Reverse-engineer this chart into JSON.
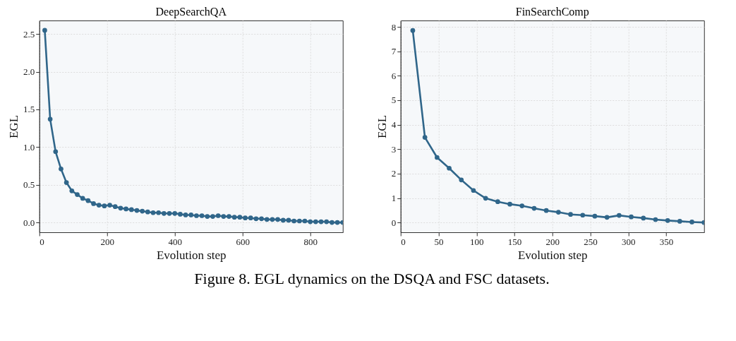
{
  "chart_data": [
    {
      "type": "line",
      "title": "DeepSearchQA",
      "xlabel": "Evolution step",
      "ylabel": "EGL",
      "x": [
        16,
        32,
        48,
        64,
        80,
        96,
        112,
        128,
        144,
        160,
        176,
        192,
        208,
        224,
        240,
        256,
        272,
        288,
        304,
        320,
        336,
        352,
        368,
        384,
        400,
        416,
        432,
        448,
        464,
        480,
        496,
        512,
        528,
        544,
        560,
        576,
        592,
        608,
        624,
        640,
        656,
        672,
        688,
        704,
        720,
        736,
        752,
        768,
        784,
        800,
        816,
        832,
        848,
        864,
        880,
        896
      ],
      "series": [
        {
          "color": "#30668a",
          "values": [
            2.55,
            1.37,
            0.94,
            0.71,
            0.53,
            0.42,
            0.37,
            0.32,
            0.29,
            0.25,
            0.23,
            0.22,
            0.23,
            0.21,
            0.19,
            0.18,
            0.17,
            0.16,
            0.15,
            0.14,
            0.13,
            0.13,
            0.12,
            0.12,
            0.12,
            0.11,
            0.1,
            0.1,
            0.09,
            0.09,
            0.08,
            0.08,
            0.09,
            0.08,
            0.08,
            0.07,
            0.07,
            0.06,
            0.06,
            0.05,
            0.05,
            0.04,
            0.04,
            0.04,
            0.03,
            0.03,
            0.02,
            0.02,
            0.02,
            0.01,
            0.01,
            0.01,
            0.01,
            0.0,
            0.0,
            0.0
          ]
        }
      ],
      "xlim": [
        0,
        896
      ],
      "xticks": [
        0,
        200,
        400,
        600,
        800
      ],
      "ylim": [
        -0.13,
        2.68
      ],
      "yticks": [
        {
          "value": 0,
          "label": "0.0"
        },
        0.5,
        {
          "value": 1,
          "label": "1.0"
        },
        1.5,
        {
          "value": 2,
          "label": "2.0"
        },
        2.5
      ],
      "grid": true,
      "marker": "circle",
      "line_style": "solid",
      "annotations": [
        "Figure 8. EGL dynamics on the DSQA and FSC datasets."
      ]
    },
    {
      "type": "line",
      "title": "FinSearchComp",
      "xlabel": "Evolution step",
      "ylabel": "EGL",
      "x": [
        16,
        32,
        48,
        64,
        80,
        96,
        112,
        128,
        144,
        160,
        176,
        192,
        208,
        224,
        240,
        256,
        272,
        288,
        304,
        320,
        336,
        352,
        368,
        384,
        400
      ],
      "series": [
        {
          "color": "#30668a",
          "values": [
            7.85,
            3.48,
            2.66,
            2.22,
            1.74,
            1.31,
            0.99,
            0.85,
            0.75,
            0.68,
            0.58,
            0.49,
            0.42,
            0.33,
            0.3,
            0.26,
            0.21,
            0.29,
            0.23,
            0.18,
            0.12,
            0.08,
            0.05,
            0.02,
            0.0
          ]
        }
      ],
      "xlim": [
        0,
        400
      ],
      "xticks": [
        0,
        50,
        100,
        150,
        200,
        250,
        300,
        350
      ],
      "ylim": [
        -0.4,
        8.26
      ],
      "yticks": [
        0,
        1,
        2,
        3,
        4,
        5,
        6,
        7,
        8
      ],
      "grid": true,
      "marker": "circle",
      "line_style": "solid"
    }
  ]
}
